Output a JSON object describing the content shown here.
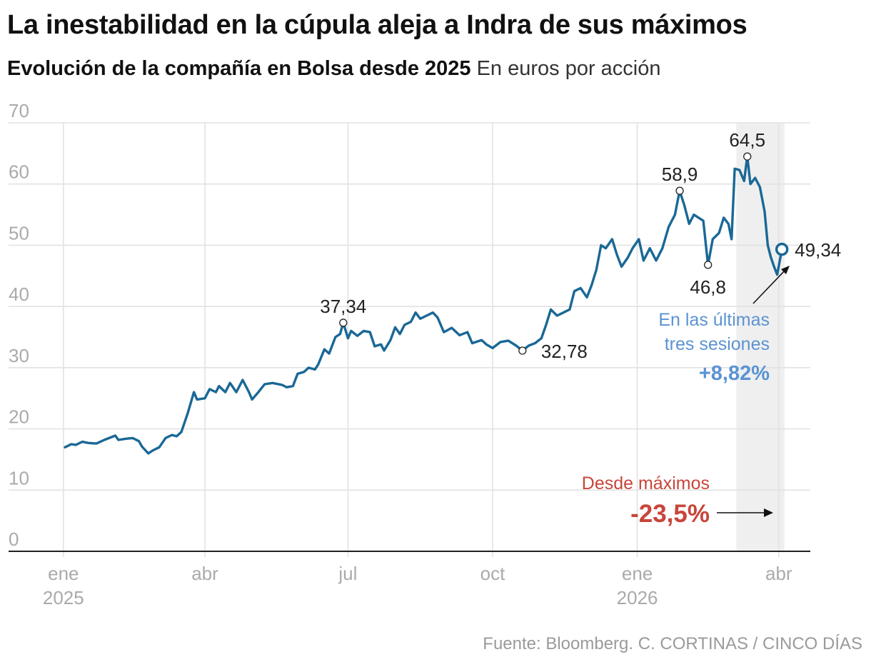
{
  "header": {
    "title": "La inestabilidad en la cúpula aleja a Indra de sus máximos",
    "subtitle_strong": "Evolución de la compañía en Bolsa desde 2025",
    "subtitle_light": "En euros por acción"
  },
  "footer": {
    "source": "Fuente: Bloomberg. C. CORTINAS / CINCO DÍAS"
  },
  "colors": {
    "line": "#1a6896",
    "grid": "#e2e2e2",
    "axis": "#222222",
    "tick_text": "#aaaaaa",
    "highlight_band": "#efefef",
    "blue_note": "#5b93d3",
    "red_note": "#c8453a",
    "label": "#222222"
  },
  "chart_data": {
    "type": "line",
    "title": "La inestabilidad en la cúpula aleja a Indra de sus máximos",
    "subtitle": "Evolución de la compañía en Bolsa desde 2025",
    "ylabel": "En euros por acción",
    "xlabel": "",
    "ylim": [
      0,
      70
    ],
    "yticks": [
      0,
      10,
      20,
      30,
      40,
      50,
      60,
      70
    ],
    "grid": true,
    "legend": "none",
    "x_ticks": [
      {
        "x": "2025-01-01",
        "label": "ene",
        "label2": "2025"
      },
      {
        "x": "2025-04-01",
        "label": "abr",
        "label2": ""
      },
      {
        "x": "2025-07-01",
        "label": "jul",
        "label2": ""
      },
      {
        "x": "2025-10-01",
        "label": "oct",
        "label2": ""
      },
      {
        "x": "2026-01-01",
        "label": "ene",
        "label2": "2026"
      },
      {
        "x": "2026-04-01",
        "label": "abr",
        "label2": ""
      }
    ],
    "x_range": [
      "2024-12-28",
      "2026-04-12"
    ],
    "highlight_range": [
      "2026-03-05",
      "2026-04-01"
    ],
    "series": [
      {
        "values": [
          [
            "2025-01-02",
            17.0
          ],
          [
            "2025-01-06",
            17.5
          ],
          [
            "2025-01-09",
            17.4
          ],
          [
            "2025-01-13",
            17.9
          ],
          [
            "2025-01-17",
            17.7
          ],
          [
            "2025-01-22",
            17.6
          ],
          [
            "2025-01-27",
            18.2
          ],
          [
            "2025-02-03",
            18.9
          ],
          [
            "2025-02-05",
            18.2
          ],
          [
            "2025-02-10",
            18.4
          ],
          [
            "2025-02-14",
            18.5
          ],
          [
            "2025-02-18",
            18.0
          ],
          [
            "2025-02-20",
            17.1
          ],
          [
            "2025-02-24",
            16.0
          ],
          [
            "2025-02-27",
            16.5
          ],
          [
            "2025-03-03",
            17.0
          ],
          [
            "2025-03-07",
            18.5
          ],
          [
            "2025-03-11",
            19.0
          ],
          [
            "2025-03-14",
            18.8
          ],
          [
            "2025-03-17",
            19.5
          ],
          [
            "2025-03-19",
            21.0
          ],
          [
            "2025-03-21",
            22.5
          ],
          [
            "2025-03-25",
            26.0
          ],
          [
            "2025-03-27",
            24.8
          ],
          [
            "2025-04-01",
            25.0
          ],
          [
            "2025-04-04",
            26.5
          ],
          [
            "2025-04-08",
            26.0
          ],
          [
            "2025-04-10",
            27.0
          ],
          [
            "2025-04-14",
            26.0
          ],
          [
            "2025-04-17",
            27.5
          ],
          [
            "2025-04-21",
            26.0
          ],
          [
            "2025-04-25",
            28.0
          ],
          [
            "2025-04-29",
            26.0
          ],
          [
            "2025-05-01",
            24.8
          ],
          [
            "2025-05-05",
            26.0
          ],
          [
            "2025-05-09",
            27.3
          ],
          [
            "2025-05-14",
            27.5
          ],
          [
            "2025-05-20",
            27.2
          ],
          [
            "2025-05-23",
            26.8
          ],
          [
            "2025-05-27",
            27.0
          ],
          [
            "2025-05-30",
            29.0
          ],
          [
            "2025-06-03",
            29.3
          ],
          [
            "2025-06-06",
            30.0
          ],
          [
            "2025-06-10",
            29.7
          ],
          [
            "2025-06-12",
            30.5
          ],
          [
            "2025-06-16",
            33.0
          ],
          [
            "2025-06-19",
            32.3
          ],
          [
            "2025-06-23",
            35.0
          ],
          [
            "2025-06-26",
            35.5
          ],
          [
            "2025-06-28",
            37.34
          ],
          [
            "2025-07-01",
            34.8
          ],
          [
            "2025-07-03",
            36.0
          ],
          [
            "2025-07-07",
            35.2
          ],
          [
            "2025-07-11",
            36.0
          ],
          [
            "2025-07-15",
            35.8
          ],
          [
            "2025-07-18",
            33.5
          ],
          [
            "2025-07-22",
            33.8
          ],
          [
            "2025-07-24",
            32.8
          ],
          [
            "2025-07-28",
            34.5
          ],
          [
            "2025-07-31",
            36.6
          ],
          [
            "2025-08-03",
            35.5
          ],
          [
            "2025-08-06",
            37.0
          ],
          [
            "2025-08-10",
            37.5
          ],
          [
            "2025-08-13",
            39.0
          ],
          [
            "2025-08-16",
            38.0
          ],
          [
            "2025-08-20",
            38.5
          ],
          [
            "2025-08-24",
            39.0
          ],
          [
            "2025-08-27",
            38.2
          ],
          [
            "2025-08-31",
            35.8
          ],
          [
            "2025-09-05",
            36.5
          ],
          [
            "2025-09-10",
            35.3
          ],
          [
            "2025-09-15",
            35.8
          ],
          [
            "2025-09-18",
            34.0
          ],
          [
            "2025-09-24",
            34.5
          ],
          [
            "2025-09-27",
            33.8
          ],
          [
            "2025-10-01",
            33.2
          ],
          [
            "2025-10-06",
            34.2
          ],
          [
            "2025-10-11",
            34.4
          ],
          [
            "2025-10-16",
            33.6
          ],
          [
            "2025-10-20",
            32.78
          ],
          [
            "2025-10-24",
            33.6
          ],
          [
            "2025-10-28",
            34.0
          ],
          [
            "2025-11-01",
            34.8
          ],
          [
            "2025-11-04",
            37.0
          ],
          [
            "2025-11-07",
            39.5
          ],
          [
            "2025-11-11",
            38.5
          ],
          [
            "2025-11-15",
            39.0
          ],
          [
            "2025-11-19",
            39.5
          ],
          [
            "2025-11-22",
            42.5
          ],
          [
            "2025-11-26",
            43.0
          ],
          [
            "2025-11-30",
            41.5
          ],
          [
            "2025-12-03",
            43.5
          ],
          [
            "2025-12-06",
            46.0
          ],
          [
            "2025-12-09",
            50.0
          ],
          [
            "2025-12-12",
            49.5
          ],
          [
            "2025-12-16",
            51.0
          ],
          [
            "2025-12-19",
            48.5
          ],
          [
            "2025-12-22",
            46.5
          ],
          [
            "2025-12-26",
            48.0
          ],
          [
            "2025-12-29",
            49.5
          ],
          [
            "2026-01-02",
            51.0
          ],
          [
            "2026-01-05",
            47.5
          ],
          [
            "2026-01-09",
            49.5
          ],
          [
            "2026-01-13",
            47.5
          ],
          [
            "2026-01-17",
            49.5
          ],
          [
            "2026-01-21",
            53.0
          ],
          [
            "2026-01-25",
            55.0
          ],
          [
            "2026-01-28",
            58.9
          ],
          [
            "2026-01-31",
            56.5
          ],
          [
            "2026-02-03",
            53.5
          ],
          [
            "2026-02-06",
            55.0
          ],
          [
            "2026-02-09",
            54.5
          ],
          [
            "2026-02-12",
            54.0
          ],
          [
            "2026-02-15",
            46.8
          ],
          [
            "2026-02-18",
            51.0
          ],
          [
            "2026-02-22",
            52.0
          ],
          [
            "2026-02-25",
            54.5
          ],
          [
            "2026-02-28",
            53.5
          ],
          [
            "2026-03-02",
            51.0
          ],
          [
            "2026-03-04",
            62.5
          ],
          [
            "2026-03-07",
            62.3
          ],
          [
            "2026-03-10",
            60.5
          ],
          [
            "2026-03-12",
            64.5
          ],
          [
            "2026-03-14",
            60.0
          ],
          [
            "2026-03-17",
            61.0
          ],
          [
            "2026-03-20",
            59.5
          ],
          [
            "2026-03-23",
            55.5
          ],
          [
            "2026-03-25",
            50.0
          ],
          [
            "2026-03-27",
            48.0
          ],
          [
            "2026-03-29",
            46.5
          ],
          [
            "2026-03-31",
            45.2
          ],
          [
            "2026-04-03",
            49.34
          ]
        ]
      }
    ],
    "annotations": [
      {
        "x": "2025-06-28",
        "y": 37.34,
        "label": "37,34",
        "pos": "above",
        "marker": "small"
      },
      {
        "x": "2025-10-20",
        "y": 32.78,
        "label": "32,78",
        "pos": "right",
        "marker": "small"
      },
      {
        "x": "2026-01-28",
        "y": 58.9,
        "label": "58,9",
        "pos": "above",
        "marker": "small"
      },
      {
        "x": "2026-02-15",
        "y": 46.8,
        "label": "46,8",
        "pos": "below",
        "marker": "small"
      },
      {
        "x": "2026-03-12",
        "y": 64.5,
        "label": "64,5",
        "pos": "above",
        "marker": "small"
      },
      {
        "x": "2026-04-03",
        "y": 49.34,
        "label": "49,34",
        "pos": "right",
        "marker": "large"
      }
    ],
    "notes": {
      "recent": {
        "line1": "En las últimas",
        "line2": "tres sesiones",
        "value": "+8,82%"
      },
      "from_max": {
        "label": "Desde máximos",
        "value": "-23,5%"
      }
    }
  }
}
